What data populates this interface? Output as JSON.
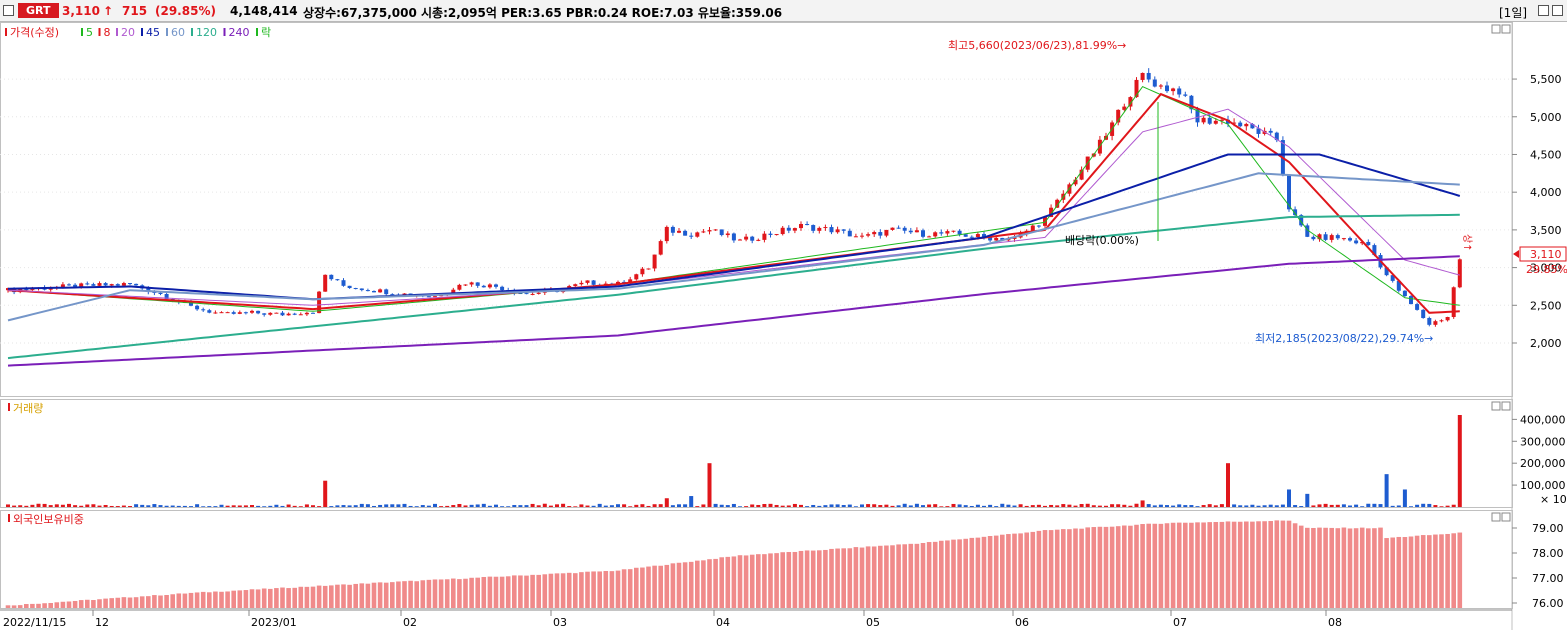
{
  "header": {
    "code": "GRT",
    "price": "3,110",
    "change_arrow": "↑",
    "change": "715",
    "change_pct": "(29.85%)",
    "volume": "4,148,414",
    "info": "상장수:67,375,000 시총:2,095억 PER:3.65 PBR:0.24 ROE:7.03 유보율:359.06",
    "period": "[1일]"
  },
  "colors": {
    "up": "#e0161b",
    "down": "#1e5cd0",
    "ma5": "#1fb81f",
    "ma8": "#e0161b",
    "ma20": "#b05ad0",
    "ma45": "#0b1fa8",
    "ma60": "#7596c9",
    "ma120": "#2cae8e",
    "ma240": "#7a1fb8",
    "foreign": "#f08a8a"
  },
  "price_panel": {
    "legend": [
      {
        "label": "가격(수정)",
        "color": "#e0161b"
      },
      {
        "label": "5",
        "color": "#1fb81f"
      },
      {
        "label": "8",
        "color": "#e0161b"
      },
      {
        "label": "20",
        "color": "#b05ad0"
      },
      {
        "label": "45",
        "color": "#0b1fa8"
      },
      {
        "label": "60",
        "color": "#7596c9"
      },
      {
        "label": "120",
        "color": "#2cae8e"
      },
      {
        "label": "240",
        "color": "#7a1fb8"
      },
      {
        "label": "락",
        "color": "#1fb81f"
      }
    ],
    "y_ticks": [
      "5,500",
      "5,000",
      "4,500",
      "4,000",
      "3,500",
      "3,000",
      "2,500",
      "2,000"
    ],
    "annotation_high": "최고5,660(2023/06/23),81.99%→",
    "annotation_low": "최저2,185(2023/08/22),29.74%→",
    "annotation_div": "배당락(0.00%)",
    "annotation_up": "상↑",
    "last_price": "3,110",
    "last_pct": "29.85%"
  },
  "volume_panel": {
    "label": "거래량",
    "y_ticks": [
      "400,000",
      "300,000",
      "200,000",
      "100,000"
    ],
    "unit": "× 10"
  },
  "foreign_panel": {
    "label": "외국인보유비중",
    "y_ticks": [
      "79.00",
      "78.00",
      "77.00",
      "76.00"
    ]
  },
  "x_axis": {
    "labels": [
      "2022/11/15",
      "12",
      "2023/01",
      "02",
      "03",
      "04",
      "05",
      "06",
      "07",
      "08"
    ]
  },
  "chart_data": {
    "type": "candlestick",
    "ylim": [
      1700,
      5900
    ],
    "high": {
      "date": "2023/06/23",
      "value": 5660,
      "pct": 81.99
    },
    "low": {
      "date": "2023/08/22",
      "value": 2185,
      "pct": 29.74
    },
    "last": {
      "value": 3110,
      "pct": 29.85,
      "change": 715
    },
    "close_trend": [
      [
        0,
        2700
      ],
      [
        10,
        2750
      ],
      [
        20,
        2780
      ],
      [
        25,
        2650
      ],
      [
        30,
        2480
      ],
      [
        35,
        2380
      ],
      [
        40,
        2400
      ],
      [
        45,
        2380
      ],
      [
        50,
        2420
      ],
      [
        52,
        2900
      ],
      [
        55,
        2760
      ],
      [
        60,
        2700
      ],
      [
        65,
        2650
      ],
      [
        70,
        2620
      ],
      [
        75,
        2800
      ],
      [
        80,
        2750
      ],
      [
        85,
        2650
      ],
      [
        90,
        2700
      ],
      [
        95,
        2800
      ],
      [
        100,
        2780
      ],
      [
        105,
        3000
      ],
      [
        108,
        3500
      ],
      [
        112,
        3450
      ],
      [
        115,
        3500
      ],
      [
        120,
        3350
      ],
      [
        125,
        3450
      ],
      [
        130,
        3550
      ],
      [
        135,
        3500
      ],
      [
        140,
        3400
      ],
      [
        145,
        3500
      ],
      [
        150,
        3450
      ],
      [
        155,
        3450
      ],
      [
        160,
        3400
      ],
      [
        165,
        3380
      ],
      [
        170,
        3650
      ],
      [
        175,
        4200
      ],
      [
        180,
        4750
      ],
      [
        183,
        5200
      ],
      [
        186,
        5550
      ],
      [
        189,
        5400
      ],
      [
        192,
        5350
      ],
      [
        195,
        4950
      ],
      [
        200,
        4950
      ],
      [
        205,
        4800
      ],
      [
        208,
        4700
      ],
      [
        210,
        3800
      ],
      [
        213,
        3400
      ],
      [
        218,
        3400
      ],
      [
        223,
        3300
      ],
      [
        226,
        2900
      ],
      [
        229,
        2600
      ],
      [
        233,
        2250
      ],
      [
        236,
        2350
      ],
      [
        238,
        3110
      ]
    ],
    "ma_series": [
      {
        "name": "5",
        "points": [
          [
            0,
            2700
          ],
          [
            50,
            2420
          ],
          [
            100,
            2780
          ],
          [
            170,
            3600
          ],
          [
            186,
            5400
          ],
          [
            200,
            4900
          ],
          [
            213,
            3500
          ],
          [
            229,
            2600
          ],
          [
            238,
            2500
          ]
        ]
      },
      {
        "name": "8",
        "points": [
          [
            0,
            2700
          ],
          [
            50,
            2450
          ],
          [
            100,
            2780
          ],
          [
            170,
            3500
          ],
          [
            189,
            5300
          ],
          [
            200,
            4950
          ],
          [
            210,
            4400
          ],
          [
            226,
            3000
          ],
          [
            233,
            2400
          ],
          [
            238,
            2420
          ]
        ]
      },
      {
        "name": "20",
        "points": [
          [
            0,
            2700
          ],
          [
            50,
            2500
          ],
          [
            100,
            2750
          ],
          [
            170,
            3400
          ],
          [
            186,
            4800
          ],
          [
            200,
            5100
          ],
          [
            210,
            4600
          ],
          [
            229,
            3100
          ],
          [
            238,
            2900
          ]
        ]
      },
      {
        "name": "45",
        "points": [
          [
            0,
            2720
          ],
          [
            20,
            2750
          ],
          [
            50,
            2580
          ],
          [
            100,
            2750
          ],
          [
            160,
            3400
          ],
          [
            200,
            4500
          ],
          [
            215,
            4500
          ],
          [
            238,
            3950
          ]
        ]
      },
      {
        "name": "60",
        "points": [
          [
            0,
            2300
          ],
          [
            20,
            2700
          ],
          [
            50,
            2580
          ],
          [
            100,
            2720
          ],
          [
            160,
            3300
          ],
          [
            205,
            4250
          ],
          [
            238,
            4100
          ]
        ]
      },
      {
        "name": "120",
        "points": [
          [
            0,
            1800
          ],
          [
            100,
            2640
          ],
          [
            160,
            3250
          ],
          [
            210,
            3670
          ],
          [
            238,
            3700
          ]
        ]
      },
      {
        "name": "240",
        "points": [
          [
            0,
            1700
          ],
          [
            100,
            2100
          ],
          [
            160,
            2650
          ],
          [
            210,
            3050
          ],
          [
            238,
            3150
          ]
        ]
      }
    ],
    "volume": [
      [
        52,
        120000
      ],
      [
        108,
        40000
      ],
      [
        112,
        50000
      ],
      [
        115,
        200000
      ],
      [
        186,
        30000
      ],
      [
        200,
        200000
      ],
      [
        210,
        80000
      ],
      [
        213,
        60000
      ],
      [
        226,
        150000
      ],
      [
        229,
        80000
      ],
      [
        238,
        420000
      ]
    ],
    "foreign_ownership_range": [
      76.0,
      79.0
    ]
  }
}
